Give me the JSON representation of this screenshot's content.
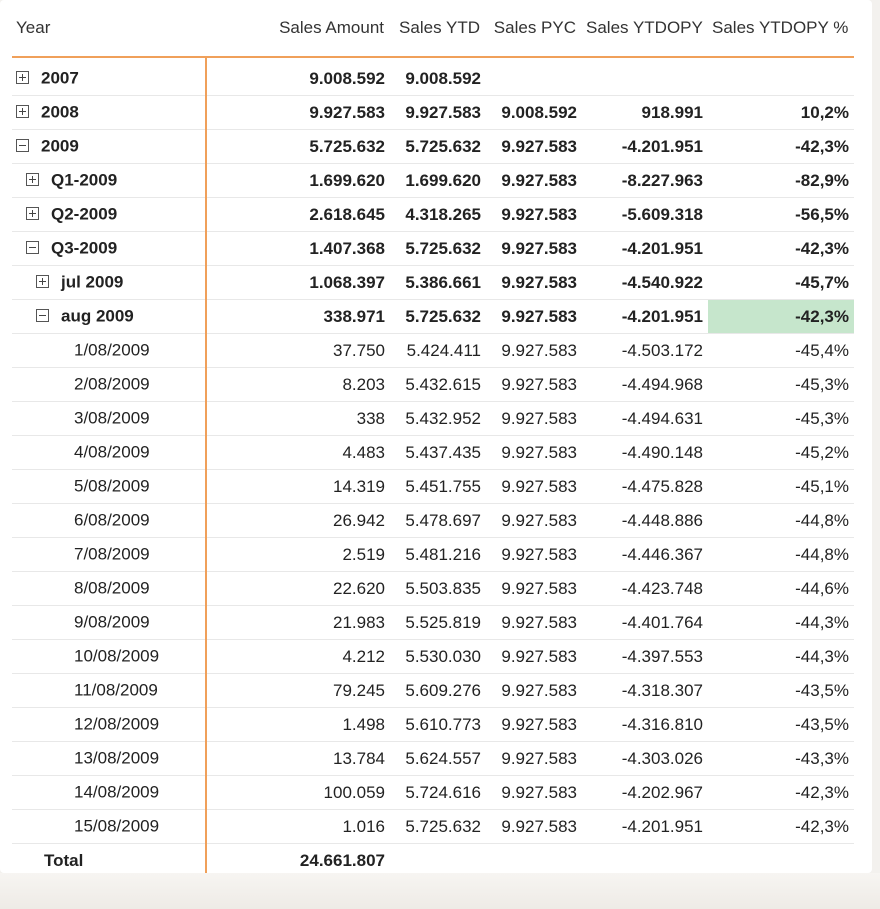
{
  "columns": [
    "Year",
    "Sales Amount",
    "Sales YTD",
    "Sales PYC",
    "Sales YTDOPY",
    "Sales YTDOPY %"
  ],
  "rows": [
    {
      "label": "2007",
      "level": 0,
      "toggle": "plus",
      "bold": true,
      "values": [
        "9.008.592",
        "9.008.592",
        "",
        "",
        ""
      ]
    },
    {
      "label": "2008",
      "level": 0,
      "toggle": "plus",
      "bold": true,
      "values": [
        "9.927.583",
        "9.927.583",
        "9.008.592",
        "918.991",
        "10,2%"
      ]
    },
    {
      "label": "2009",
      "level": 0,
      "toggle": "minus",
      "bold": true,
      "values": [
        "5.725.632",
        "5.725.632",
        "9.927.583",
        "-4.201.951",
        "-42,3%"
      ]
    },
    {
      "label": "Q1-2009",
      "level": 1,
      "toggle": "plus",
      "bold": true,
      "values": [
        "1.699.620",
        "1.699.620",
        "9.927.583",
        "-8.227.963",
        "-82,9%"
      ]
    },
    {
      "label": "Q2-2009",
      "level": 1,
      "toggle": "plus",
      "bold": true,
      "values": [
        "2.618.645",
        "4.318.265",
        "9.927.583",
        "-5.609.318",
        "-56,5%"
      ]
    },
    {
      "label": "Q3-2009",
      "level": 1,
      "toggle": "minus",
      "bold": true,
      "values": [
        "1.407.368",
        "5.725.632",
        "9.927.583",
        "-4.201.951",
        "-42,3%"
      ]
    },
    {
      "label": "jul 2009",
      "level": 2,
      "toggle": "plus",
      "bold": true,
      "values": [
        "1.068.397",
        "5.386.661",
        "9.927.583",
        "-4.540.922",
        "-45,7%"
      ]
    },
    {
      "label": "aug 2009",
      "level": 2,
      "toggle": "minus",
      "bold": true,
      "highlight_last": true,
      "values": [
        "338.971",
        "5.725.632",
        "9.927.583",
        "-4.201.951",
        "-42,3%"
      ]
    },
    {
      "label": "1/08/2009",
      "level": 4,
      "values": [
        "37.750",
        "5.424.411",
        "9.927.583",
        "-4.503.172",
        "-45,4%"
      ]
    },
    {
      "label": "2/08/2009",
      "level": 4,
      "values": [
        "8.203",
        "5.432.615",
        "9.927.583",
        "-4.494.968",
        "-45,3%"
      ]
    },
    {
      "label": "3/08/2009",
      "level": 4,
      "values": [
        "338",
        "5.432.952",
        "9.927.583",
        "-4.494.631",
        "-45,3%"
      ]
    },
    {
      "label": "4/08/2009",
      "level": 4,
      "values": [
        "4.483",
        "5.437.435",
        "9.927.583",
        "-4.490.148",
        "-45,2%"
      ]
    },
    {
      "label": "5/08/2009",
      "level": 4,
      "values": [
        "14.319",
        "5.451.755",
        "9.927.583",
        "-4.475.828",
        "-45,1%"
      ]
    },
    {
      "label": "6/08/2009",
      "level": 4,
      "values": [
        "26.942",
        "5.478.697",
        "9.927.583",
        "-4.448.886",
        "-44,8%"
      ]
    },
    {
      "label": "7/08/2009",
      "level": 4,
      "values": [
        "2.519",
        "5.481.216",
        "9.927.583",
        "-4.446.367",
        "-44,8%"
      ]
    },
    {
      "label": "8/08/2009",
      "level": 4,
      "values": [
        "22.620",
        "5.503.835",
        "9.927.583",
        "-4.423.748",
        "-44,6%"
      ]
    },
    {
      "label": "9/08/2009",
      "level": 4,
      "values": [
        "21.983",
        "5.525.819",
        "9.927.583",
        "-4.401.764",
        "-44,3%"
      ]
    },
    {
      "label": "10/08/2009",
      "level": 4,
      "values": [
        "4.212",
        "5.530.030",
        "9.927.583",
        "-4.397.553",
        "-44,3%"
      ]
    },
    {
      "label": "11/08/2009",
      "level": 4,
      "values": [
        "79.245",
        "5.609.276",
        "9.927.583",
        "-4.318.307",
        "-43,5%"
      ]
    },
    {
      "label": "12/08/2009",
      "level": 4,
      "values": [
        "1.498",
        "5.610.773",
        "9.927.583",
        "-4.316.810",
        "-43,5%"
      ]
    },
    {
      "label": "13/08/2009",
      "level": 4,
      "values": [
        "13.784",
        "5.624.557",
        "9.927.583",
        "-4.303.026",
        "-43,3%"
      ]
    },
    {
      "label": "14/08/2009",
      "level": 4,
      "values": [
        "100.059",
        "5.724.616",
        "9.927.583",
        "-4.202.967",
        "-42,3%"
      ]
    },
    {
      "label": "15/08/2009",
      "level": 4,
      "values": [
        "1.016",
        "5.725.632",
        "9.927.583",
        "-4.201.951",
        "-42,3%"
      ]
    }
  ],
  "total": {
    "label": "Total",
    "values": [
      "24.661.807",
      "",
      "",
      "",
      ""
    ]
  },
  "colors": {
    "accent": "#f0a05a",
    "highlight": "#c6e6cc"
  },
  "icons": {
    "expand": "plus-box-icon",
    "collapse": "minus-box-icon"
  }
}
